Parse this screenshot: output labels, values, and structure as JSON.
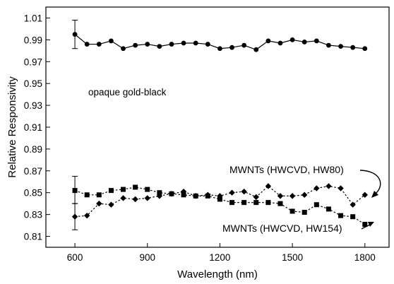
{
  "chart_data": {
    "type": "line",
    "xlabel": "Wavelength (nm)",
    "ylabel": "Relative Responsivity",
    "xlim": [
      480,
      1900
    ],
    "ylim": [
      0.8,
      1.02
    ],
    "xticks": [
      600,
      900,
      1200,
      1500,
      1800
    ],
    "yticks": [
      0.81,
      0.83,
      0.85,
      0.87,
      0.89,
      0.91,
      0.93,
      0.95,
      0.97,
      0.99,
      1.01
    ],
    "grid": false,
    "legend": "none",
    "series": [
      {
        "name": "opaque gold-black",
        "marker": "circle",
        "line": "solid",
        "x": [
          600,
          650,
          700,
          750,
          800,
          850,
          900,
          950,
          1000,
          1050,
          1100,
          1150,
          1200,
          1250,
          1300,
          1350,
          1400,
          1450,
          1500,
          1550,
          1600,
          1650,
          1700,
          1750,
          1800
        ],
        "y": [
          0.995,
          0.986,
          0.986,
          0.989,
          0.982,
          0.985,
          0.986,
          0.984,
          0.986,
          0.987,
          0.987,
          0.986,
          0.982,
          0.983,
          0.985,
          0.981,
          0.989,
          0.987,
          0.99,
          0.988,
          0.989,
          0.985,
          0.984,
          0.983,
          0.982
        ],
        "error_bar": {
          "x": 600,
          "low": 0.982,
          "high": 1.008
        }
      },
      {
        "name": "MWNTs (HWCVD, HW80)",
        "marker": "diamond",
        "line": "dashed",
        "x": [
          600,
          650,
          700,
          750,
          800,
          850,
          900,
          950,
          1000,
          1050,
          1100,
          1150,
          1200,
          1250,
          1300,
          1350,
          1400,
          1450,
          1500,
          1550,
          1600,
          1650,
          1700,
          1750,
          1800
        ],
        "y": [
          0.828,
          0.829,
          0.84,
          0.839,
          0.845,
          0.844,
          0.845,
          0.847,
          0.849,
          0.851,
          0.847,
          0.848,
          0.847,
          0.85,
          0.851,
          0.846,
          0.856,
          0.847,
          0.847,
          0.848,
          0.854,
          0.856,
          0.854,
          0.839,
          0.848
        ],
        "error_bar": {
          "x": 600,
          "low": 0.816,
          "high": 0.84
        }
      },
      {
        "name": "MWNTs (HWCVD, HW154)",
        "marker": "square",
        "line": "dashed",
        "x": [
          600,
          650,
          700,
          750,
          800,
          850,
          900,
          950,
          1000,
          1050,
          1100,
          1150,
          1200,
          1250,
          1300,
          1350,
          1400,
          1450,
          1500,
          1550,
          1600,
          1650,
          1700,
          1750,
          1800
        ],
        "y": [
          0.852,
          0.848,
          0.848,
          0.852,
          0.853,
          0.855,
          0.853,
          0.85,
          0.849,
          0.848,
          0.847,
          0.847,
          0.844,
          0.841,
          0.841,
          0.841,
          0.841,
          0.84,
          0.833,
          0.832,
          0.839,
          0.835,
          0.829,
          0.828,
          0.821
        ],
        "error_bar": {
          "x": 600,
          "low": 0.84,
          "high": 0.865
        }
      }
    ],
    "annotations": [
      {
        "text": "opaque gold-black",
        "series": 0
      },
      {
        "text": "MWNTs (HWCVD, HW80)",
        "series": 1
      },
      {
        "text": "MWNTs (HWCVD, HW154)",
        "series": 2
      }
    ]
  }
}
